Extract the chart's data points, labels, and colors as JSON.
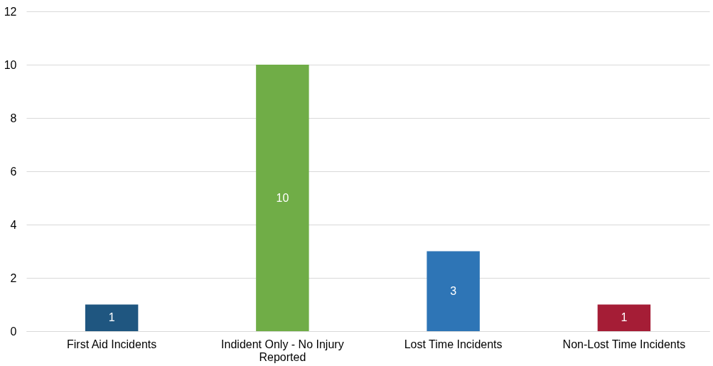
{
  "chart_data": {
    "type": "bar",
    "categories": [
      "First Aid Incidents",
      "Indident Only - No Injury Reported",
      "Lost Time Incidents",
      "Non-Lost Time Incidents"
    ],
    "values": [
      1,
      10,
      3,
      1
    ],
    "colors": [
      "#1f5680",
      "#70ad47",
      "#2e75b6",
      "#a51d36"
    ],
    "ylim": [
      0,
      12
    ],
    "yticks": [
      0,
      2,
      4,
      6,
      8,
      10,
      12
    ],
    "grid": "y",
    "data_labels": true,
    "legend": false
  }
}
